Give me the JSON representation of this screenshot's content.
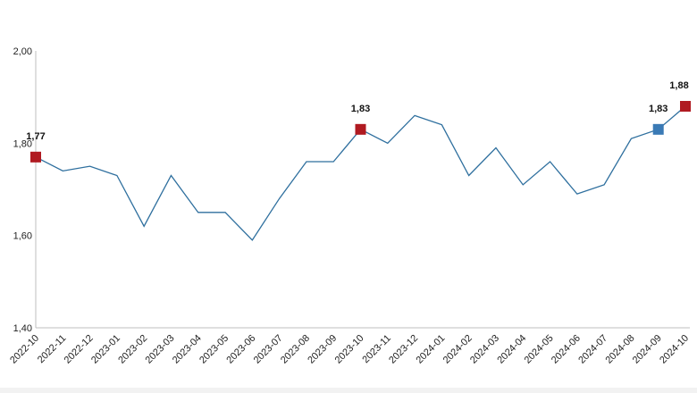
{
  "chart_data": {
    "type": "line",
    "x": [
      "2022-10",
      "2022-11",
      "2022-12",
      "2023-01",
      "2023-02",
      "2023-03",
      "2023-04",
      "2023-05",
      "2023-06",
      "2023-07",
      "2023-08",
      "2023-09",
      "2023-10",
      "2023-11",
      "2023-12",
      "2024-01",
      "2024-02",
      "2024-03",
      "2024-04",
      "2024-05",
      "2024-06",
      "2024-07",
      "2024-08",
      "2024-09",
      "2024-10"
    ],
    "series": [
      {
        "values": [
          1.77,
          1.74,
          1.75,
          1.73,
          1.62,
          1.73,
          1.65,
          1.65,
          1.59,
          1.68,
          1.76,
          1.76,
          1.83,
          1.8,
          1.86,
          1.84,
          1.73,
          1.79,
          1.71,
          1.76,
          1.69,
          1.71,
          1.81,
          1.83,
          1.88
        ]
      }
    ],
    "highlights": [
      {
        "index": 0,
        "label": "1,77",
        "color": "#b01a21"
      },
      {
        "index": 12,
        "label": "1,83",
        "color": "#b01a21"
      },
      {
        "index": 23,
        "label": "1,83",
        "color": "#3a7ab5"
      },
      {
        "index": 24,
        "label": "1,88",
        "color": "#b01a21"
      }
    ],
    "y_ticks": [
      {
        "value": 1.4,
        "label": "1,40"
      },
      {
        "value": 1.6,
        "label": "1,60"
      },
      {
        "value": 1.8,
        "label": "1,80"
      },
      {
        "value": 2.0,
        "label": "2,00"
      }
    ],
    "ylim": [
      1.4,
      2.0
    ],
    "line_color": "#2e6f9e",
    "axis_color": "#bfbfbf",
    "grid": false,
    "legend": "none",
    "title": "",
    "xlabel": "",
    "ylabel": ""
  }
}
